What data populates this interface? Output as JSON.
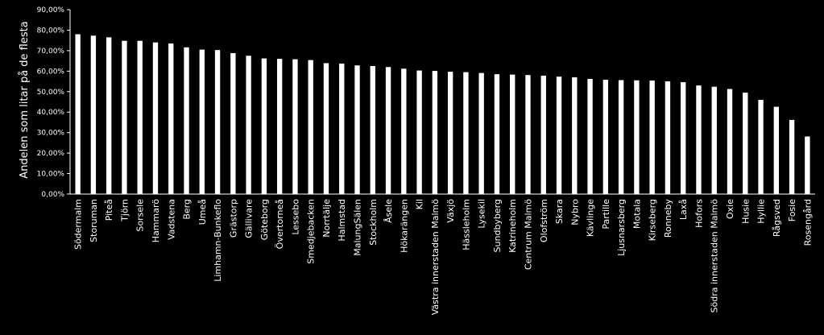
{
  "chart_data": {
    "type": "bar",
    "ylabel": "Andelen som litar på de flesta",
    "xlabel": "",
    "ylim": [
      0,
      90
    ],
    "yticks": [
      "0,00%",
      "10,00%",
      "20,00%",
      "30,00%",
      "40,00%",
      "50,00%",
      "60,00%",
      "70,00%",
      "80,00%",
      "90,00%"
    ],
    "grid": false,
    "colors": {
      "background": "#000000",
      "bar": "#ffffff",
      "axis": "#ffffff",
      "text": "#ffffff"
    },
    "categories": [
      "Södermalm",
      "Storuman",
      "Piteå",
      "Tjörn",
      "Sorsele",
      "Hammarö",
      "Vadstena",
      "Berg",
      "Umeå",
      "Limhamn-Bunkeflo",
      "Grästorp",
      "Gällivare",
      "Göteborg",
      "Övertorneå",
      "Lessebo",
      "Smedjebacken",
      "Norrtälje",
      "Halmstad",
      "MalungSälen",
      "Stockholm",
      "Åsele",
      "Hökarängen",
      "Kil",
      "Västra innerstaden Malmö",
      "Växjö",
      "Hässleholm",
      "Lysekil",
      "Sundbyberg",
      "Katrineholm",
      "Centrum Malmö",
      "Olofström",
      "Skara",
      "Nybro",
      "Kävlinge",
      "Partille",
      "Ljusnarsberg",
      "Motala",
      "Kirseberg",
      "Ronneby",
      "Laxå",
      "Hofors",
      "Södra innerstaden Malmö",
      "Oxie",
      "Husie",
      "Hyllie",
      "Rågsved",
      "Fosie",
      "Rosengård"
    ],
    "values": [
      78.0,
      77.3,
      76.5,
      74.8,
      74.8,
      74.0,
      73.5,
      71.6,
      70.5,
      70.3,
      68.8,
      67.5,
      66.2,
      66.0,
      65.8,
      65.4,
      63.9,
      63.7,
      62.8,
      62.5,
      62.0,
      61.2,
      60.3,
      60.1,
      59.7,
      59.5,
      59.1,
      58.5,
      58.3,
      58.1,
      57.8,
      57.3,
      57.0,
      56.2,
      55.8,
      55.6,
      55.5,
      55.4,
      55.0,
      54.6,
      53.0,
      52.4,
      51.3,
      49.5,
      46.0,
      42.6,
      36.2,
      28.1
    ]
  }
}
